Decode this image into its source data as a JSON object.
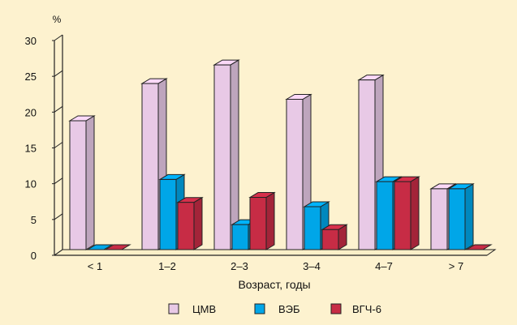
{
  "chart_data": {
    "type": "bar",
    "categories": [
      "< 1",
      "1–2",
      "2–3",
      "3–4",
      "4–7",
      "> 7"
    ],
    "series": [
      {
        "name": "ЦМВ",
        "values": [
          18,
          23.2,
          25.8,
          21,
          23.7,
          8.5
        ],
        "color": "#e8c9e6"
      },
      {
        "name": "ВЭБ",
        "values": [
          0,
          9.8,
          3.5,
          6,
          9.5,
          8.5
        ],
        "color": "#00a6e8"
      },
      {
        "name": "ВГЧ-6",
        "values": [
          0,
          6.6,
          7.3,
          2.8,
          9.5,
          0
        ],
        "color": "#c72c45"
      }
    ],
    "xlabel": "Возраст, годы",
    "ylabel": "%",
    "ylim": [
      0,
      30
    ],
    "yticks": [
      0,
      5,
      10,
      15,
      20,
      25,
      30
    ],
    "grid": false,
    "legend_position": "bottom"
  }
}
